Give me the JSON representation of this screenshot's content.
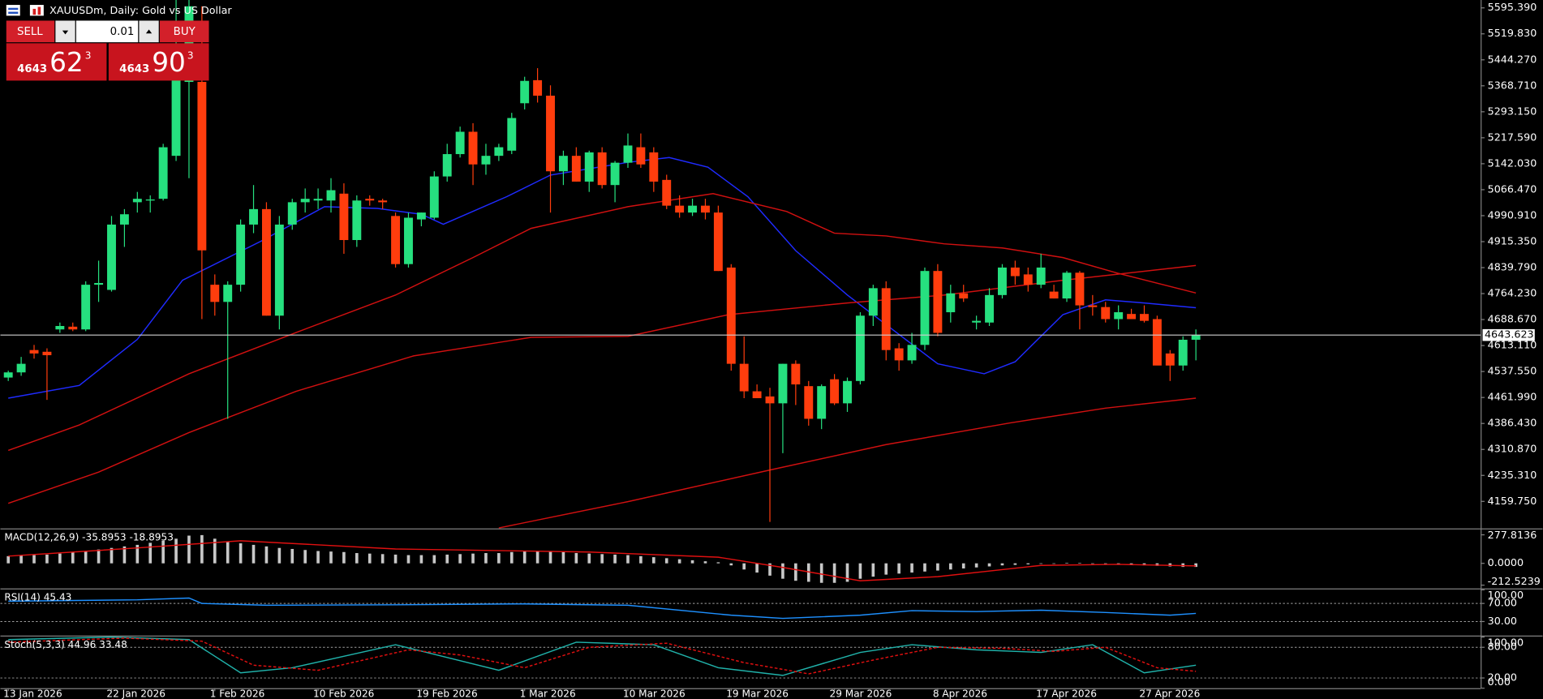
{
  "header": {
    "title": "XAUUSDm, Daily:  Gold vs US Dollar"
  },
  "trade_panel": {
    "sell": "SELL",
    "volume": "0.01",
    "buy": "BUY",
    "bid_big": "4643",
    "bid_pips": "62",
    "bid_point": "3",
    "ask_big": "4643",
    "ask_pips": "90",
    "ask_point": "3"
  },
  "chart_data": [
    {
      "type": "candlestick",
      "up_color": "#26e07f",
      "down_color": "#ff3d0d",
      "ylim": [
        4082.5,
        5618.3
      ],
      "yticks": [
        {
          "value": 5595.39,
          "label": "5595.390"
        },
        {
          "value": 5519.83,
          "label": "5519.830"
        },
        {
          "value": 5444.27,
          "label": "5444.270"
        },
        {
          "value": 5368.71,
          "label": "5368.710"
        },
        {
          "value": 5293.15,
          "label": "5293.150"
        },
        {
          "value": 5217.59,
          "label": "5217.590"
        },
        {
          "value": 5142.03,
          "label": "5142.030"
        },
        {
          "value": 5066.47,
          "label": "5066.470"
        },
        {
          "value": 4990.91,
          "label": "4990.910"
        },
        {
          "value": 4915.35,
          "label": "4915.350"
        },
        {
          "value": 4839.79,
          "label": "4839.790"
        },
        {
          "value": 4764.23,
          "label": "4764.230"
        },
        {
          "value": 4688.67,
          "label": "4688.670"
        },
        {
          "value": 4613.11,
          "label": "4613.110"
        },
        {
          "value": 4537.55,
          "label": "4537.550"
        },
        {
          "value": 4461.99,
          "label": "4461.990"
        },
        {
          "value": 4386.43,
          "label": "4386.430"
        },
        {
          "value": 4310.87,
          "label": "4310.870"
        },
        {
          "value": 4235.31,
          "label": "4235.310"
        },
        {
          "value": 4159.75,
          "label": "4159.750"
        }
      ],
      "last_price": 4643.623,
      "categories": [
        "13 Jan 2026",
        null,
        null,
        null,
        null,
        null,
        null,
        null,
        "22 Jan 2026",
        null,
        null,
        null,
        null,
        null,
        null,
        null,
        "1 Feb 2026",
        null,
        null,
        null,
        null,
        null,
        null,
        null,
        "10 Feb 2026",
        null,
        null,
        null,
        null,
        null,
        null,
        null,
        "19 Feb 2026",
        null,
        null,
        null,
        null,
        null,
        null,
        null,
        "1 Mar 2026",
        null,
        null,
        null,
        null,
        null,
        null,
        null,
        "10 Mar 2026",
        null,
        null,
        null,
        null,
        null,
        null,
        null,
        "19 Mar 2026",
        null,
        null,
        null,
        null,
        null,
        null,
        null,
        "29 Mar 2026",
        null,
        null,
        null,
        null,
        null,
        null,
        null,
        "8 Apr 2026",
        null,
        null,
        null,
        null,
        null,
        null,
        null,
        "17 Apr 2026",
        null,
        null,
        null,
        null,
        null,
        null,
        null,
        "27 Apr 2026",
        null,
        null,
        null,
        null
      ],
      "ohlc": [
        [
          4520,
          4540,
          4510,
          4535
        ],
        [
          4535,
          4580,
          4525,
          4560
        ],
        [
          4600,
          4615,
          4575,
          4590
        ],
        [
          4595,
          4605,
          4455,
          4585
        ],
        [
          4660,
          4680,
          4650,
          4670
        ],
        [
          4668,
          4680,
          4655,
          4660
        ],
        [
          4660,
          4800,
          4655,
          4790
        ],
        [
          4790,
          4860,
          4740,
          4795
        ],
        [
          4775,
          4990,
          4770,
          4965
        ],
        [
          4965,
          5010,
          4900,
          4995
        ],
        [
          5030,
          5060,
          5000,
          5040
        ],
        [
          5035,
          5050,
          5000,
          5038
        ],
        [
          5040,
          5200,
          5035,
          5190
        ],
        [
          5165,
          5620,
          5150,
          5385
        ],
        [
          5380,
          5620,
          5100,
          5600
        ],
        [
          5380,
          5600,
          4690,
          4890
        ],
        [
          4790,
          4820,
          4700,
          4740
        ],
        [
          4740,
          4800,
          4400,
          4790
        ],
        [
          4790,
          4980,
          4770,
          4965
        ],
        [
          4965,
          5080,
          4940,
          5010
        ],
        [
          5010,
          5030,
          4700,
          4700
        ],
        [
          4700,
          4990,
          4660,
          4965
        ],
        [
          4965,
          5040,
          4950,
          5030
        ],
        [
          5030,
          5070,
          5000,
          5040
        ],
        [
          5035,
          5070,
          5010,
          5040
        ],
        [
          5035,
          5100,
          5000,
          5065
        ],
        [
          5055,
          5085,
          4880,
          4920
        ],
        [
          4920,
          5050,
          4900,
          5035
        ],
        [
          5040,
          5050,
          5020,
          5035
        ],
        [
          5035,
          5040,
          5010,
          5030
        ],
        [
          4990,
          5000,
          4840,
          4850
        ],
        [
          4850,
          5000,
          4840,
          4985
        ],
        [
          4980,
          5000,
          4960,
          5000
        ],
        [
          4985,
          5120,
          4980,
          5105
        ],
        [
          5105,
          5200,
          5090,
          5170
        ],
        [
          5170,
          5250,
          5160,
          5235
        ],
        [
          5235,
          5260,
          5080,
          5140
        ],
        [
          5140,
          5200,
          5110,
          5165
        ],
        [
          5165,
          5200,
          5150,
          5190
        ],
        [
          5180,
          5290,
          5170,
          5275
        ],
        [
          5318,
          5395,
          5300,
          5383
        ],
        [
          5385,
          5420,
          5320,
          5340
        ],
        [
          5340,
          5370,
          5000,
          5120
        ],
        [
          5120,
          5180,
          5080,
          5165
        ],
        [
          5165,
          5190,
          5090,
          5090
        ],
        [
          5090,
          5180,
          5060,
          5175
        ],
        [
          5175,
          5190,
          5070,
          5080
        ],
        [
          5080,
          5150,
          5030,
          5145
        ],
        [
          5145,
          5230,
          5130,
          5195
        ],
        [
          5190,
          5230,
          5130,
          5140
        ],
        [
          5175,
          5190,
          5060,
          5090
        ],
        [
          5095,
          5110,
          5010,
          5020
        ],
        [
          5020,
          5050,
          4985,
          5000
        ],
        [
          5000,
          5040,
          4990,
          5020
        ],
        [
          5020,
          5040,
          4980,
          5000
        ],
        [
          5000,
          5020,
          4830,
          4830
        ],
        [
          4840,
          4850,
          4540,
          4560
        ],
        [
          4560,
          4640,
          4460,
          4480
        ],
        [
          4480,
          4500,
          4460,
          4460
        ],
        [
          4465,
          4490,
          4100,
          4445
        ],
        [
          4445,
          4560,
          4300,
          4560
        ],
        [
          4560,
          4570,
          4440,
          4500
        ],
        [
          4495,
          4510,
          4380,
          4400
        ],
        [
          4400,
          4500,
          4370,
          4495
        ],
        [
          4515,
          4530,
          4440,
          4445
        ],
        [
          4445,
          4520,
          4420,
          4510
        ],
        [
          4510,
          4710,
          4500,
          4700
        ],
        [
          4700,
          4790,
          4670,
          4780
        ],
        [
          4780,
          4800,
          4570,
          4600
        ],
        [
          4605,
          4620,
          4540,
          4570
        ],
        [
          4570,
          4650,
          4560,
          4615
        ],
        [
          4615,
          4840,
          4600,
          4830
        ],
        [
          4830,
          4850,
          4640,
          4650
        ],
        [
          4710,
          4790,
          4680,
          4765
        ],
        [
          4765,
          4790,
          4740,
          4750
        ],
        [
          4680,
          4700,
          4660,
          4685
        ],
        [
          4680,
          4780,
          4670,
          4760
        ],
        [
          4760,
          4850,
          4750,
          4840
        ],
        [
          4840,
          4860,
          4790,
          4815
        ],
        [
          4820,
          4840,
          4770,
          4790
        ],
        [
          4790,
          4880,
          4780,
          4840
        ],
        [
          4770,
          4790,
          4750,
          4750
        ],
        [
          4750,
          4830,
          4740,
          4825
        ],
        [
          4825,
          4830,
          4660,
          4730
        ],
        [
          4730,
          4760,
          4700,
          4725
        ],
        [
          4725,
          4740,
          4680,
          4690
        ],
        [
          4690,
          4730,
          4660,
          4710
        ],
        [
          4705,
          4720,
          4690,
          4690
        ],
        [
          4705,
          4730,
          4680,
          4685
        ],
        [
          4690,
          4700,
          4560,
          4555
        ],
        [
          4590,
          4600,
          4510,
          4555
        ],
        [
          4555,
          4640,
          4540,
          4630
        ],
        [
          4630,
          4660,
          4570,
          4643.623
        ]
      ],
      "series": [
        {
          "color": "#1f2bff",
          "x": [
            0,
            5.5,
            10,
            13.5,
            19.6,
            24.5,
            28.6,
            32,
            33.7,
            38.6,
            42,
            48,
            51.2,
            54.2,
            57.3,
            61,
            65,
            68,
            72,
            75.6,
            78,
            81.7,
            85,
            88,
            92
          ],
          "values": [
            4460,
            4497,
            4631,
            4803,
            4917,
            5017,
            5012,
            4995,
            4966,
            5046,
            5109,
            5146,
            5160,
            5132,
            5046,
            4889,
            4760,
            4674,
            4560,
            4531,
            4566,
            4703,
            4746,
            4737,
            4723
          ]
        },
        {
          "color": "#d01010",
          "x": [
            0,
            5.5,
            14,
            22.3,
            30,
            36,
            40.5,
            48,
            54.6,
            60.3,
            64,
            68,
            72.5,
            77,
            81.7,
            86,
            92
          ],
          "values": [
            4308,
            4382,
            4531,
            4651,
            4760,
            4869,
            4954,
            5017,
            5055,
            5003,
            4940,
            4932,
            4909,
            4897,
            4869,
            4823,
            4766
          ]
        },
        {
          "color": "#d01010",
          "x": [
            0,
            7,
            14,
            22.3,
            31.4,
            40.5,
            48,
            55.8,
            65,
            72.5,
            81.7,
            92
          ],
          "values": [
            4154,
            4245,
            4360,
            4480,
            4583,
            4637,
            4640,
            4703,
            4737,
            4760,
            4803,
            4846
          ]
        },
        {
          "color": "#d01010",
          "x": [
            38,
            48,
            59,
            68,
            77.6,
            85,
            92
          ],
          "values": [
            4082.5,
            4159,
            4251,
            4325,
            4388,
            4431,
            4460
          ]
        }
      ]
    },
    {
      "type": "bar",
      "title": "MACD(12,26,9) -35.8953 -18.8953",
      "color": "#c8c8c8",
      "ylim": [
        -239.5,
        325.7
      ],
      "yticks": [
        277.8136,
        {
          "value": 0,
          "label": "0.0000"
        },
        -212.5239
      ],
      "values": [
        70,
        75,
        80,
        85,
        95,
        110,
        120,
        135,
        150,
        165,
        180,
        200,
        220,
        240,
        270,
        275,
        240,
        210,
        195,
        180,
        165,
        150,
        140,
        130,
        120,
        115,
        110,
        100,
        95,
        90,
        85,
        80,
        80,
        80,
        85,
        90,
        95,
        100,
        100,
        110,
        115,
        120,
        120,
        110,
        100,
        95,
        90,
        85,
        80,
        70,
        60,
        50,
        40,
        30,
        20,
        10,
        -20,
        -60,
        -90,
        -120,
        -150,
        -170,
        -180,
        -190,
        -190,
        -180,
        -150,
        -130,
        -110,
        -100,
        -90,
        -80,
        -70,
        -60,
        -50,
        -40,
        -30,
        -20,
        -15,
        -10,
        -5,
        0,
        5,
        3,
        0,
        -5,
        -10,
        -15,
        -20,
        -25,
        -30,
        -35,
        -35
      ],
      "series": [
        {
          "color": "#e01010",
          "x": [
            0,
            10,
            18,
            30,
            45,
            55,
            60,
            66,
            72,
            80,
            86,
            92
          ],
          "values": [
            70,
            150,
            220,
            140,
            110,
            60,
            -40,
            -170,
            -130,
            -20,
            -10,
            -25
          ]
        }
      ]
    },
    {
      "type": "line",
      "title": "RSI(14) 45.43",
      "ylim": [
        0,
        100
      ],
      "yticks": [
        {
          "value": 100,
          "label": "100.00"
        },
        {
          "value": 70,
          "label": "70.00"
        },
        {
          "value": 30,
          "label": "30.00"
        }
      ],
      "levels": [
        70,
        30
      ],
      "series": [
        {
          "color": "#1e90ff",
          "x": [
            0,
            10,
            14,
            15,
            20,
            30,
            40,
            48,
            56,
            60,
            66,
            70,
            75,
            80,
            85,
            90,
            92
          ],
          "values": [
            75,
            78,
            82,
            70,
            66,
            67,
            69,
            66,
            44,
            37,
            44,
            54,
            52,
            55,
            50,
            44,
            48
          ]
        }
      ]
    },
    {
      "type": "line",
      "title": "Stoch(5,3,3) 44.96 33.48",
      "ylim": [
        0,
        100
      ],
      "yticks": [
        {
          "value": 100,
          "label": "100.00"
        },
        {
          "value": 80,
          "label": "80.00"
        },
        {
          "value": 20,
          "label": "20.00"
        },
        {
          "value": 0,
          "label": "0.00"
        }
      ],
      "levels": [
        80,
        20
      ],
      "series": [
        {
          "color": "#20b2aa",
          "x": [
            0,
            8,
            14,
            18,
            22,
            30,
            34,
            38,
            44,
            50,
            55,
            60,
            66,
            70,
            75,
            80,
            84,
            88,
            92
          ],
          "values": [
            95,
            100,
            95,
            30,
            40,
            85,
            60,
            35,
            90,
            85,
            40,
            25,
            70,
            85,
            75,
            70,
            85,
            30,
            45
          ]
        },
        {
          "color": "#e01010",
          "dashed": true,
          "x": [
            0,
            9,
            15,
            19,
            24,
            31,
            35,
            40,
            45,
            51,
            57,
            62,
            67,
            72,
            77,
            81,
            85,
            89,
            92
          ],
          "values": [
            90,
            98,
            92,
            45,
            35,
            75,
            65,
            40,
            80,
            88,
            50,
            28,
            55,
            80,
            78,
            72,
            80,
            40,
            33
          ]
        }
      ]
    }
  ]
}
